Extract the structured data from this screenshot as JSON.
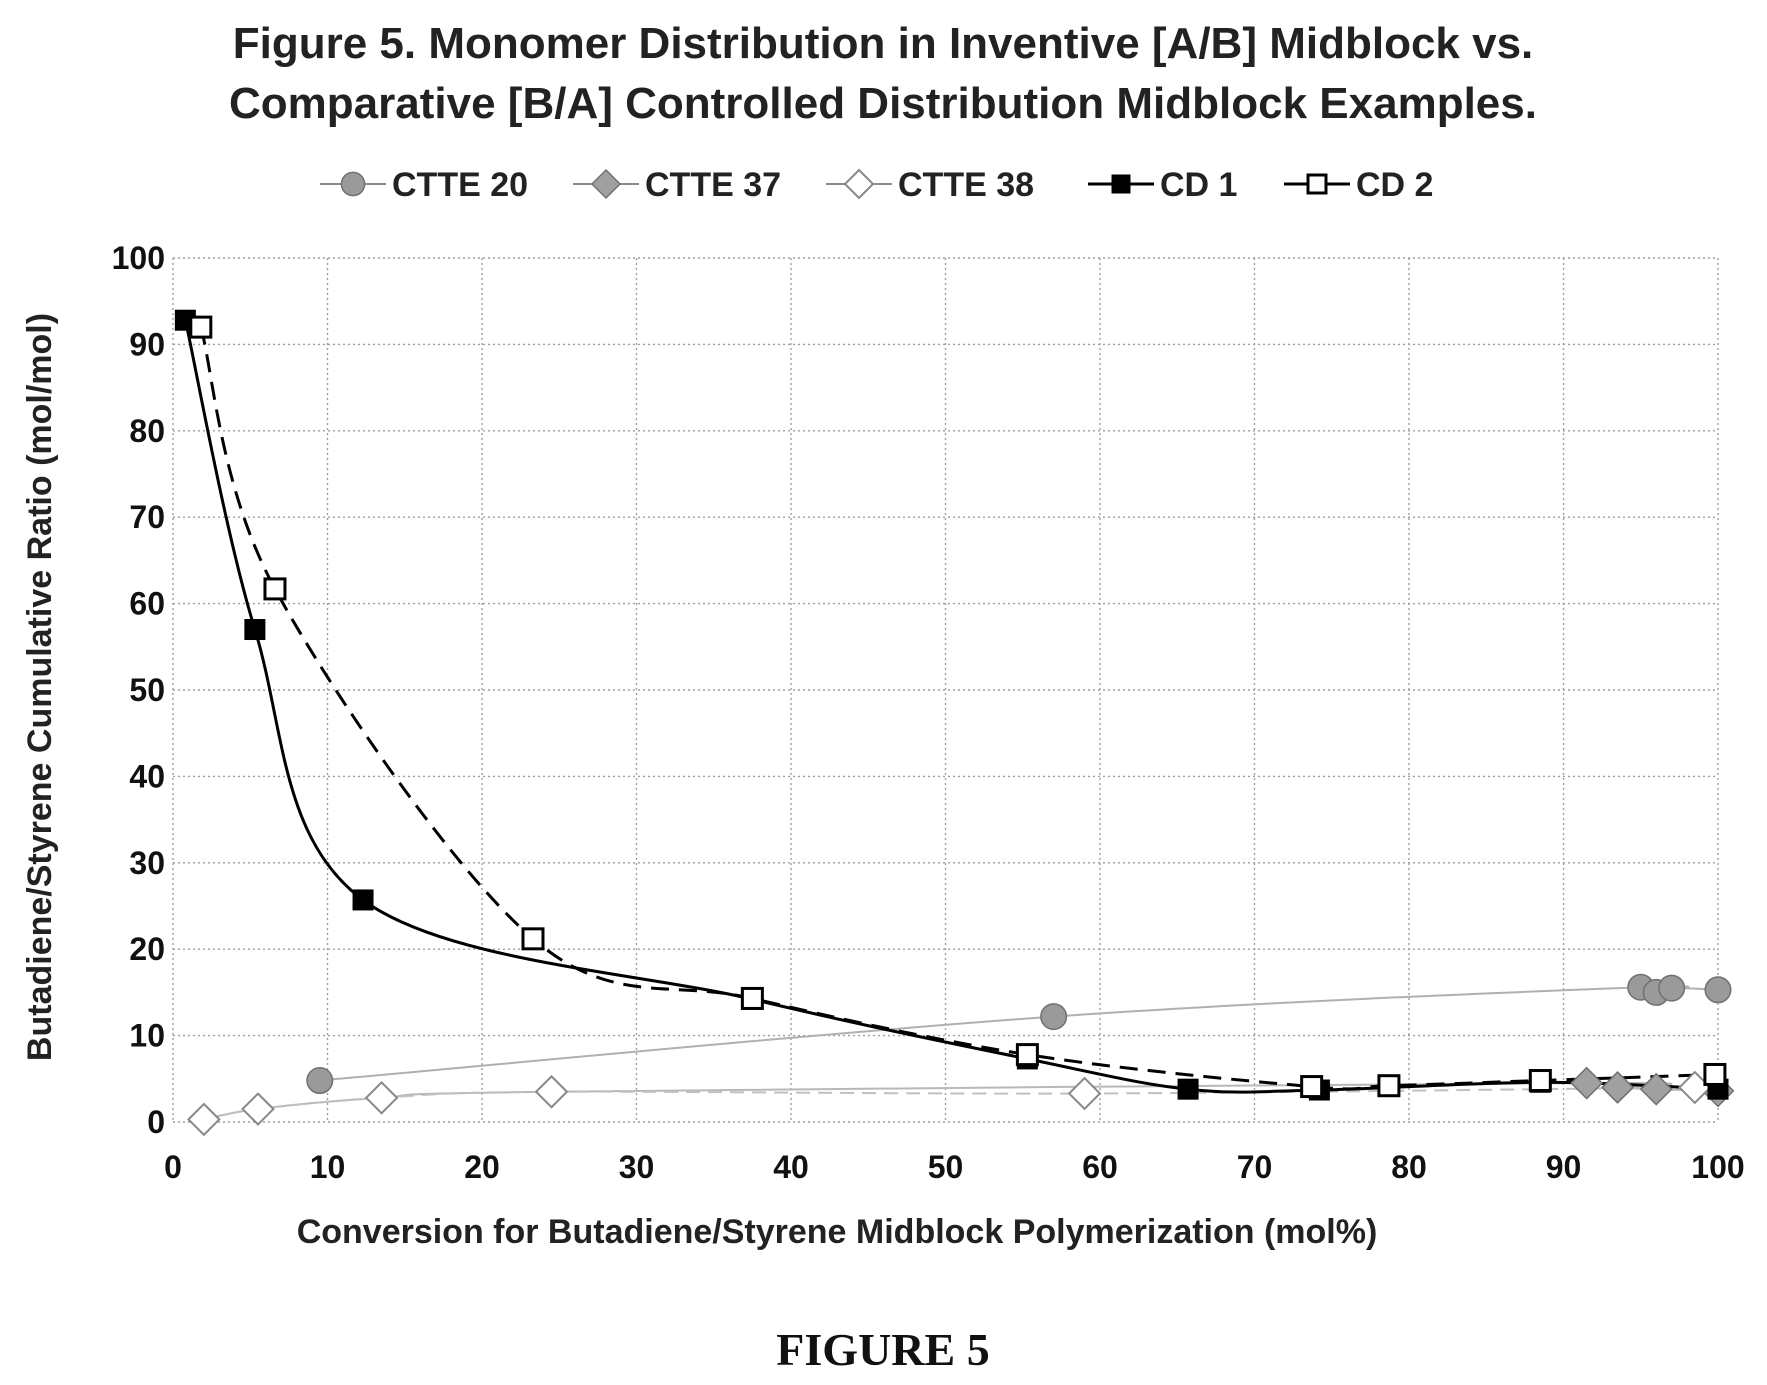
{
  "page": {
    "caption": "FIGURE 5"
  },
  "chart_data": {
    "type": "line",
    "title_lines": [
      "Figure 5. Monomer Distribution in Inventive [A/B] Midblock vs.",
      "Comparative [B/A] Controlled Distribution Midblock Examples."
    ],
    "xlabel": "Conversion for Butadiene/Styrene Midblock Polymerization (mol%)",
    "ylabel": "Butadiene/Styrene Cumulative Ratio (mol/mol)",
    "xlim": [
      0,
      100
    ],
    "ylim": [
      0,
      100
    ],
    "xticks": [
      0,
      10,
      20,
      30,
      40,
      50,
      60,
      70,
      80,
      90,
      100
    ],
    "yticks": [
      0,
      10,
      20,
      30,
      40,
      50,
      60,
      70,
      80,
      90,
      100
    ],
    "grid": true,
    "legend_position": "top",
    "series": [
      {
        "name": "CTTE 20",
        "marker": "circle",
        "color": "#9a9a9a",
        "line_color": "#b0b0b0",
        "line_style": "solid",
        "points": [
          [
            9.5,
            4.8
          ],
          [
            57,
            12.2
          ],
          [
            95,
            15.6
          ],
          [
            96,
            15.0
          ],
          [
            97,
            15.5
          ],
          [
            100,
            15.3
          ]
        ]
      },
      {
        "name": "CTTE 37",
        "marker": "diamond",
        "color": "#a0a0a0",
        "line_color": "#b8b8b8",
        "line_style": "solid",
        "points": [
          [
            2,
            0.3
          ],
          [
            5.5,
            1.5
          ],
          [
            13.5,
            2.8
          ],
          [
            24.5,
            3.5
          ],
          [
            91.5,
            4.5
          ],
          [
            93.5,
            4.0
          ],
          [
            96,
            3.8
          ],
          [
            100,
            3.6
          ]
        ]
      },
      {
        "name": "CTTE 38",
        "marker": "diamond-open",
        "color": "#888888",
        "line_color": "#c0c0c0",
        "line_style": "dashed",
        "points": [
          [
            2,
            0.3
          ],
          [
            5.5,
            1.5
          ],
          [
            13.5,
            2.8
          ],
          [
            24.5,
            3.5
          ],
          [
            59,
            3.3
          ],
          [
            98.5,
            4.0
          ]
        ]
      },
      {
        "name": "CD 1",
        "marker": "square",
        "color": "#000000",
        "line_color": "#000000",
        "line_style": "solid",
        "points": [
          [
            0.8,
            92.8
          ],
          [
            5.3,
            57.0
          ],
          [
            12.3,
            25.7
          ],
          [
            37.5,
            14.2
          ],
          [
            55.3,
            7.3
          ],
          [
            65.7,
            3.8
          ],
          [
            74.2,
            3.7
          ],
          [
            88.5,
            4.6
          ],
          [
            100,
            3.8
          ]
        ]
      },
      {
        "name": "CD 2",
        "marker": "square-open",
        "color": "#000000",
        "line_color": "#000000",
        "line_style": "dashed",
        "points": [
          [
            1.8,
            92.0
          ],
          [
            6.6,
            61.7
          ],
          [
            23.3,
            21.2
          ],
          [
            37.5,
            14.3
          ],
          [
            55.3,
            7.8
          ],
          [
            73.7,
            4.1
          ],
          [
            78.7,
            4.2
          ],
          [
            88.5,
            4.8
          ],
          [
            99.8,
            5.5
          ]
        ]
      }
    ]
  }
}
